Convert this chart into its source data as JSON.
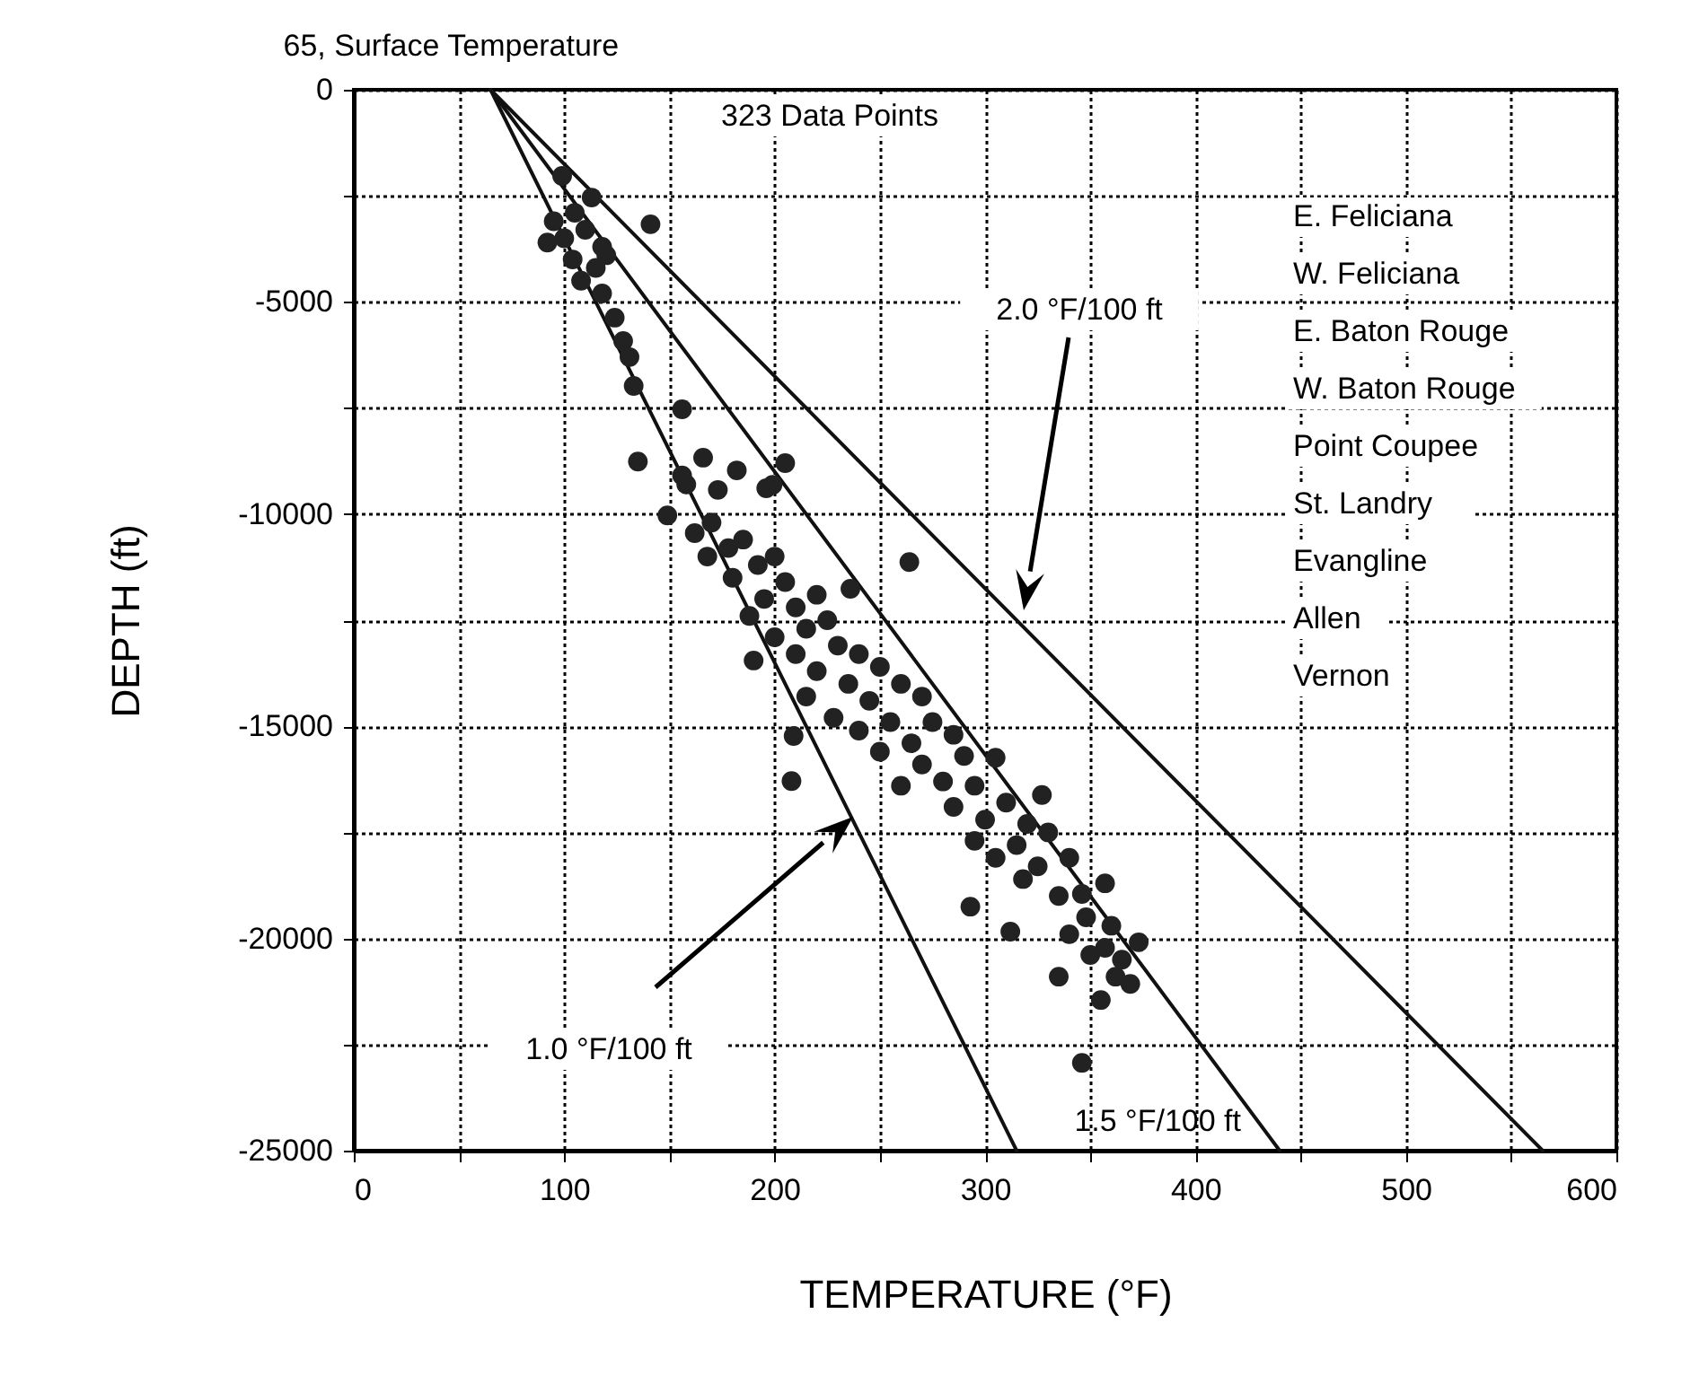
{
  "chart_data": {
    "type": "scatter",
    "xlabel": "TEMPERATURE (°F)",
    "ylabel": "DEPTH (ft)",
    "xlim": [
      0,
      600
    ],
    "ylim": [
      -25000,
      0
    ],
    "xticks": [
      0,
      {
        "value": 50,
        "label": null
      },
      100,
      {
        "value": 150,
        "label": null
      },
      200,
      {
        "value": 250,
        "label": null
      },
      300,
      {
        "value": 350,
        "label": null
      },
      400,
      {
        "value": 450,
        "label": null
      },
      500,
      {
        "value": 550,
        "label": null
      },
      600
    ],
    "yticks": [
      -25000,
      {
        "value": -22500,
        "label": null
      },
      -20000,
      {
        "value": -17500,
        "label": null
      },
      -15000,
      {
        "value": -12500,
        "label": null
      },
      -10000,
      {
        "value": -7500,
        "label": null
      },
      -5000,
      {
        "value": -2500,
        "label": null
      },
      0
    ],
    "grid": true,
    "annotations": [
      {
        "text": "65, Surface Temperature",
        "x": 65,
        "y": 0
      },
      "323 Data Points",
      "E. Feliciana",
      "W. Feliciana",
      "E. Baton Rouge",
      "W. Baton Rouge",
      "Point Coupee",
      "St. Landry",
      "Evangline",
      "Allen",
      "Vernon",
      "2.0 °F/100 ft",
      "1.0 °F/100 ft",
      "1.5 °F/100 ft"
    ],
    "series": [
      {
        "type": "line",
        "marker": "none",
        "color": "#111111",
        "x": [
          65,
          315
        ],
        "values": [
          0,
          -25000
        ]
      },
      {
        "type": "line",
        "marker": "none",
        "color": "#111111",
        "x": [
          65,
          440
        ],
        "values": [
          0,
          -25000
        ]
      },
      {
        "type": "line",
        "marker": "none",
        "color": "#111111",
        "x": [
          65,
          565
        ],
        "values": [
          0,
          -25000
        ]
      },
      {
        "marker": "circle",
        "color": "#222222",
        "x": [
          99,
          113,
          141,
          95,
          105,
          100,
          110,
          118,
          92,
          104,
          115,
          120,
          108,
          118,
          124,
          128,
          131,
          133,
          156,
          135,
          166,
          182,
          173,
          199,
          205,
          149,
          158,
          196,
          156,
          264,
          236,
          162,
          170,
          178,
          168,
          185,
          192,
          180,
          200,
          205,
          195,
          188,
          210,
          220,
          215,
          200,
          225,
          230,
          210,
          190,
          220,
          240,
          250,
          235,
          215,
          245,
          260,
          270,
          228,
          255,
          275,
          240,
          209,
          265,
          285,
          250,
          208,
          270,
          290,
          305,
          280,
          260,
          295,
          327,
          310,
          285,
          300,
          320,
          295,
          315,
          330,
          305,
          325,
          340,
          318,
          346,
          357,
          335,
          293,
          312,
          348,
          360,
          340,
          373,
          357,
          350,
          365,
          335,
          369,
          355,
          362,
          346
        ],
        "values": [
          -2030,
          -2540,
          -3170,
          -3100,
          -2900,
          -3500,
          -3300,
          -3700,
          -3600,
          -4000,
          -4200,
          -3900,
          -4500,
          -4800,
          -5370,
          -5920,
          -6300,
          -6980,
          -7530,
          -8760,
          -8670,
          -8970,
          -9430,
          -9310,
          -8800,
          -10030,
          -9300,
          -9390,
          -9090,
          -11130,
          -11760,
          -10450,
          -10200,
          -10800,
          -11000,
          -10600,
          -11200,
          -11500,
          -11000,
          -11600,
          -12000,
          -12400,
          -12200,
          -11900,
          -12700,
          -12900,
          -12500,
          -13100,
          -13300,
          -13450,
          -13700,
          -13300,
          -13600,
          -14000,
          -14300,
          -14400,
          -14000,
          -14300,
          -14800,
          -14900,
          -14900,
          -15100,
          -15230,
          -15400,
          -15200,
          -15600,
          -16290,
          -15900,
          -15700,
          -15740,
          -16300,
          -16400,
          -16400,
          -16620,
          -16800,
          -16900,
          -17200,
          -17300,
          -17700,
          -17800,
          -17500,
          -18100,
          -18300,
          -18100,
          -18600,
          -18950,
          -18700,
          -19000,
          -19250,
          -19840,
          -19500,
          -19700,
          -19900,
          -20090,
          -20220,
          -20390,
          -20500,
          -20900,
          -21070,
          -21450,
          -20900,
          -22930
        ]
      }
    ]
  }
}
